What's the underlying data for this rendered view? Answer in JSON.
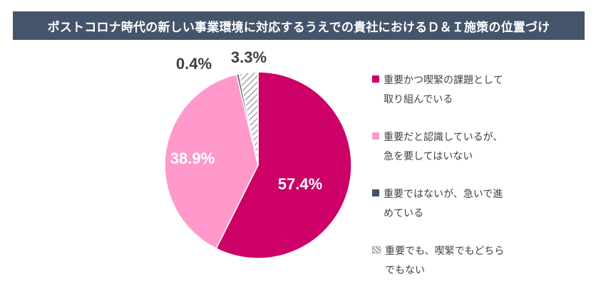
{
  "title": "ポストコロナ時代の新しい事業環境に対応するうえでの貴社におけるＤ＆Ｉ施策の位置づけ",
  "colors": {
    "title_bg": "#44546a",
    "title_text": "#ffffff"
  },
  "chart_data": {
    "type": "pie",
    "title": "ポストコロナ時代の新しい事業環境に対応するうえでの貴社におけるＤ＆Ｉ施策の位置づけ",
    "legend_position": "right",
    "slices": [
      {
        "label": "重要かつ喫緊の課題として\n取り組んでいる",
        "value": 57.4,
        "value_label": "57.4%",
        "color": "#cc0066",
        "pattern": "solid"
      },
      {
        "label": "重要だと認識しているが、\n急を要してはいない",
        "value": 38.9,
        "value_label": "38.9%",
        "color": "#ff99cc",
        "pattern": "solid"
      },
      {
        "label": "重要ではないが、急いで進\nめている",
        "value": 0.4,
        "value_label": "0.4%",
        "color": "#44546a",
        "pattern": "solid"
      },
      {
        "label": "重要でも、喫緊でもどちら\nでもない",
        "value": 3.3,
        "value_label": "3.3%",
        "color": "#a6a6a6",
        "pattern": "hatched"
      }
    ]
  }
}
